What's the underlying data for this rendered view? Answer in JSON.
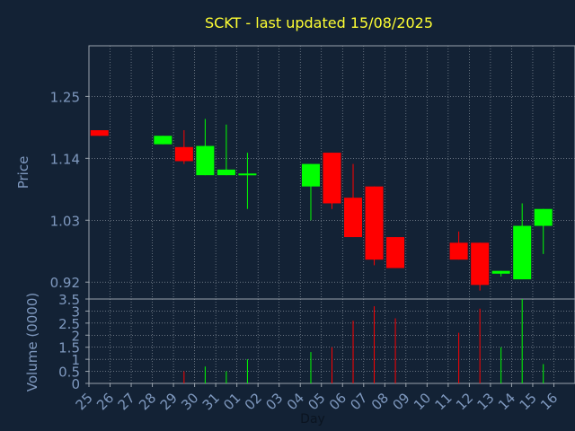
{
  "chart_data": {
    "type": "candlestick",
    "title": "SCKT - last updated 15/08/2025",
    "xlabel": "Day",
    "price_panel": {
      "ylabel": "Price",
      "ylim": [
        0.89,
        1.34
      ],
      "yticks": [
        "1.25",
        "1.14",
        "1.03",
        "0.92"
      ],
      "ytick_values": [
        1.25,
        1.14,
        1.03,
        0.92
      ],
      "grid": true
    },
    "volume_panel": {
      "ylabel": "Volume (0000)",
      "ylim": [
        0,
        3.5
      ],
      "yticks": [
        "3.5",
        "3",
        "2.5",
        "2",
        "1.5",
        "1",
        "0.5",
        "0"
      ],
      "ytick_values": [
        3.5,
        3,
        2.5,
        2,
        1.5,
        1,
        0.5,
        0
      ],
      "grid": true
    },
    "categories": [
      "25",
      "26",
      "27",
      "28",
      "29",
      "30",
      "31",
      "01",
      "02",
      "03",
      "04",
      "05",
      "06",
      "07",
      "08",
      "09",
      "10",
      "11",
      "12",
      "13",
      "14",
      "15",
      "16"
    ],
    "candles": [
      {
        "day": "25",
        "open": 1.19,
        "high": 1.19,
        "low": 1.18,
        "close": 1.18,
        "volume": 0
      },
      {
        "day": "28",
        "open": 1.165,
        "high": 1.18,
        "low": 1.165,
        "close": 1.18,
        "volume": 0
      },
      {
        "day": "29",
        "open": 1.16,
        "high": 1.19,
        "low": 1.13,
        "close": 1.135,
        "volume": 0.5
      },
      {
        "day": "30",
        "open": 1.11,
        "high": 1.21,
        "low": 1.11,
        "close": 1.162,
        "volume": 0.7
      },
      {
        "day": "31",
        "open": 1.11,
        "high": 1.2,
        "low": 1.11,
        "close": 1.12,
        "volume": 0.5
      },
      {
        "day": "01",
        "open": 1.11,
        "high": 1.15,
        "low": 1.05,
        "close": 1.113,
        "volume": 1.0
      },
      {
        "day": "04",
        "open": 1.09,
        "high": 1.13,
        "low": 1.03,
        "close": 1.13,
        "volume": 1.3
      },
      {
        "day": "05",
        "open": 1.15,
        "high": 1.15,
        "low": 1.05,
        "close": 1.06,
        "volume": 1.5
      },
      {
        "day": "06",
        "open": 1.07,
        "high": 1.13,
        "low": 1.0,
        "close": 1.0,
        "volume": 2.6
      },
      {
        "day": "07",
        "open": 1.09,
        "high": 1.09,
        "low": 0.95,
        "close": 0.96,
        "volume": 3.2
      },
      {
        "day": "08",
        "open": 1.0,
        "high": 1.0,
        "low": 0.945,
        "close": 0.945,
        "volume": 2.7
      },
      {
        "day": "11",
        "open": 0.99,
        "high": 1.01,
        "low": 0.96,
        "close": 0.96,
        "volume": 2.1
      },
      {
        "day": "12",
        "open": 0.99,
        "high": 0.99,
        "low": 0.905,
        "close": 0.915,
        "volume": 3.1
      },
      {
        "day": "13",
        "open": 0.935,
        "high": 0.94,
        "low": 0.93,
        "close": 0.94,
        "volume": 1.5
      },
      {
        "day": "14",
        "open": 0.925,
        "high": 1.06,
        "low": 0.925,
        "close": 1.02,
        "volume": 3.5
      },
      {
        "day": "15",
        "open": 1.02,
        "high": 1.05,
        "low": 0.97,
        "close": 1.05,
        "volume": 0.8
      }
    ],
    "colors": {
      "background": "#132235",
      "plot_background": "#132235",
      "grid": "#9aa3ad",
      "up": "#00ff00",
      "down": "#ff0000",
      "axis_text": "#7f99bf",
      "title": "#ffff33",
      "xlabel": "#0b1420"
    }
  }
}
